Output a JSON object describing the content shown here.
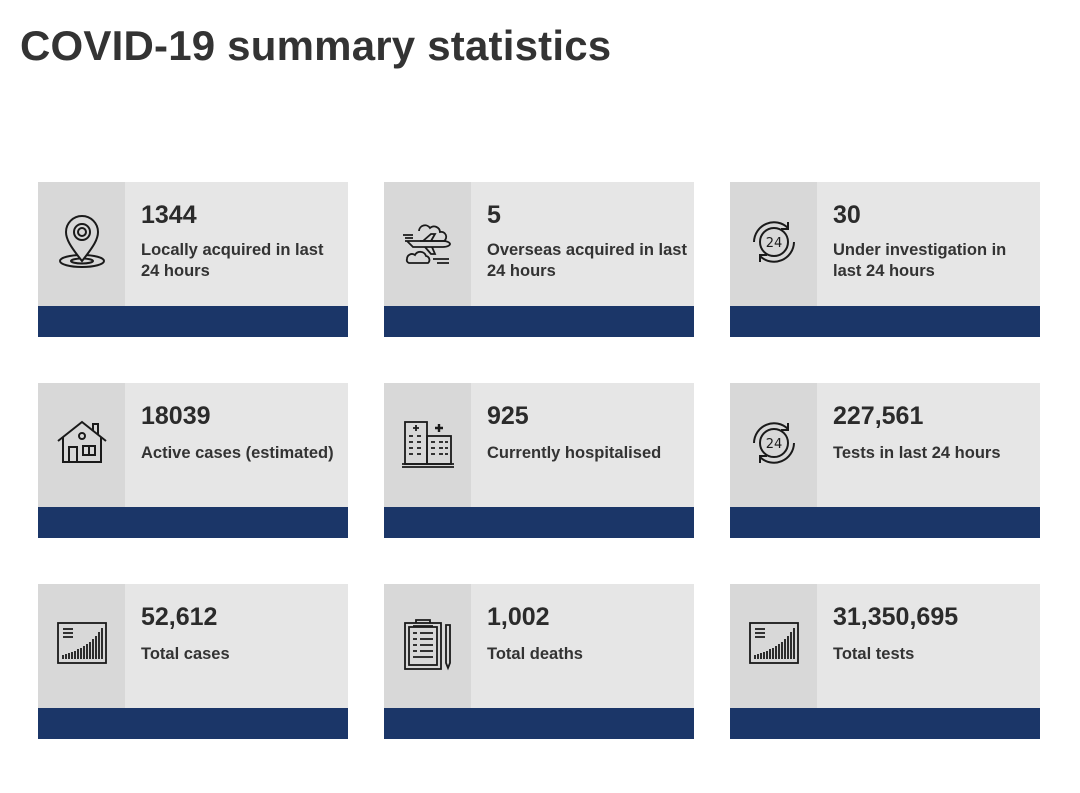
{
  "page": {
    "title": "COVID-19 summary statistics"
  },
  "colors": {
    "accent_bar": "#1b3668",
    "card_bg": "#e6e6e6",
    "icon_panel_bg": "#d8d8d8"
  },
  "cards": [
    {
      "value": "1344",
      "label": "Locally acquired in last 24 hours",
      "icon": "location-pin-icon"
    },
    {
      "value": "5",
      "label": "Overseas acquired in last 24 hours",
      "icon": "airplane-icon"
    },
    {
      "value": "30",
      "label": "Under investigation in last 24 hours",
      "icon": "24-hours-icon"
    },
    {
      "value": "18039",
      "label": "Active cases (estimated)",
      "icon": "house-icon"
    },
    {
      "value": "925",
      "label": "Currently hospitalised",
      "icon": "hospital-icon"
    },
    {
      "value": "227,561",
      "label": "Tests in last 24 hours",
      "icon": "24-hours-icon"
    },
    {
      "value": "52,612",
      "label": "Total cases",
      "icon": "growth-chart-icon"
    },
    {
      "value": "1,002",
      "label": "Total deaths",
      "icon": "clipboard-icon"
    },
    {
      "value": "31,350,695",
      "label": "Total tests",
      "icon": "growth-chart-icon"
    }
  ]
}
